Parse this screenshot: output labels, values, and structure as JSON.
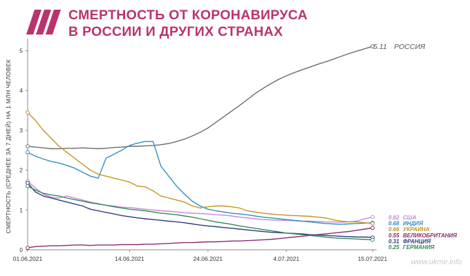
{
  "header": {
    "title_line1": "СМЕРТНОСТЬ ОТ КОРОНАВИРУСА",
    "title_line2": "В РОССИИ И ДРУГИХ СТРАНАХ",
    "brand_color": "#b9336e",
    "logo_icon": "three-slashes-logo"
  },
  "watermark": "www.ukmir.info",
  "chart_data": {
    "type": "line",
    "ylabel": "СМЕРТНОСТЬ (СРЕДНЕЕ ЗА 7 ДНЕЙ) НА 1 МЛН ЧЕЛОВЕК",
    "xlabel": "",
    "x_start": "01.06.2021",
    "x_end": "15.07.2021",
    "x_ticks": [
      {
        "day": 0,
        "label": "01.06.2021"
      },
      {
        "day": 13,
        "label": "14.06.2021"
      },
      {
        "day": 23,
        "label": "24.06.2021"
      },
      {
        "day": 33,
        "label": "4.07.2021"
      },
      {
        "day": 44,
        "label": "15.07.2021"
      }
    ],
    "y_ticks": [
      0,
      1,
      2,
      3,
      4,
      5
    ],
    "ylim": [
      0,
      5.2
    ],
    "series": [
      {
        "name": "РОССИЯ",
        "end_label": "5.11",
        "color": "#6b6b6b",
        "values": [
          2.6,
          2.58,
          2.56,
          2.54,
          2.54,
          2.55,
          2.55,
          2.56,
          2.55,
          2.54,
          2.55,
          2.57,
          2.58,
          2.6,
          2.6,
          2.61,
          2.62,
          2.64,
          2.67,
          2.72,
          2.78,
          2.86,
          2.95,
          3.06,
          3.2,
          3.34,
          3.48,
          3.62,
          3.77,
          3.92,
          4.05,
          4.17,
          4.28,
          4.37,
          4.45,
          4.52,
          4.59,
          4.66,
          4.72,
          4.79,
          4.86,
          4.93,
          4.99,
          5.05,
          5.11
        ]
      },
      {
        "name": "США",
        "end_label": "0.82",
        "color": "#c786d6",
        "values": [
          1.72,
          1.55,
          1.4,
          1.32,
          1.3,
          1.35,
          1.3,
          1.25,
          1.2,
          1.16,
          1.12,
          1.1,
          1.07,
          1.06,
          1.04,
          1.02,
          1.0,
          0.98,
          0.97,
          0.95,
          0.93,
          0.92,
          0.91,
          0.9,
          0.88,
          0.87,
          0.85,
          0.82,
          0.8,
          0.78,
          0.76,
          0.75,
          0.74,
          0.74,
          0.73,
          0.72,
          0.72,
          0.71,
          0.7,
          0.7,
          0.69,
          0.7,
          0.72,
          0.78,
          0.82
        ]
      },
      {
        "name": "ИНДИЯ",
        "end_label": "0.68",
        "color": "#2b8ec5",
        "values": [
          2.45,
          2.35,
          2.28,
          2.22,
          2.18,
          2.12,
          2.05,
          1.95,
          1.85,
          1.8,
          2.3,
          2.4,
          2.5,
          2.62,
          2.68,
          2.72,
          2.72,
          2.1,
          1.85,
          1.6,
          1.4,
          1.22,
          1.1,
          1.02,
          0.98,
          0.95,
          0.92,
          0.9,
          0.88,
          0.85,
          0.82,
          0.8,
          0.78,
          0.76,
          0.74,
          0.72,
          0.7,
          0.68,
          0.66,
          0.65,
          0.64,
          0.65,
          0.66,
          0.67,
          0.68
        ]
      },
      {
        "name": "УКРАИНА",
        "end_label": "0.66",
        "color": "#c2941e",
        "values": [
          3.45,
          3.25,
          3.0,
          2.8,
          2.6,
          2.45,
          2.3,
          2.15,
          2.0,
          1.9,
          1.85,
          1.8,
          1.75,
          1.7,
          1.6,
          1.58,
          1.48,
          1.35,
          1.3,
          1.25,
          1.2,
          1.1,
          1.05,
          1.08,
          1.1,
          1.1,
          1.08,
          1.05,
          0.98,
          0.95,
          0.92,
          0.9,
          0.88,
          0.87,
          0.86,
          0.85,
          0.84,
          0.82,
          0.8,
          0.75,
          0.72,
          0.7,
          0.7,
          0.68,
          0.66
        ]
      },
      {
        "name": "ВЕЛИКОБРИТАНИЯ",
        "end_label": "0.55",
        "color": "#8a2b70",
        "values": [
          0.05,
          0.08,
          0.09,
          0.1,
          0.1,
          0.11,
          0.12,
          0.12,
          0.11,
          0.12,
          0.12,
          0.12,
          0.13,
          0.13,
          0.13,
          0.14,
          0.14,
          0.15,
          0.16,
          0.17,
          0.18,
          0.18,
          0.19,
          0.2,
          0.2,
          0.21,
          0.22,
          0.22,
          0.23,
          0.24,
          0.25,
          0.26,
          0.28,
          0.3,
          0.32,
          0.34,
          0.36,
          0.38,
          0.4,
          0.42,
          0.44,
          0.46,
          0.49,
          0.52,
          0.55
        ]
      },
      {
        "name": "ФРАНЦИЯ",
        "end_label": "0.31",
        "color": "#2f3a7a",
        "values": [
          1.68,
          1.45,
          1.35,
          1.3,
          1.25,
          1.2,
          1.15,
          1.1,
          1.02,
          0.98,
          0.94,
          0.9,
          0.86,
          0.83,
          0.8,
          0.78,
          0.76,
          0.74,
          0.72,
          0.7,
          0.68,
          0.65,
          0.62,
          0.6,
          0.58,
          0.56,
          0.54,
          0.52,
          0.5,
          0.48,
          0.46,
          0.44,
          0.43,
          0.42,
          0.41,
          0.4,
          0.38,
          0.37,
          0.36,
          0.35,
          0.34,
          0.33,
          0.32,
          0.32,
          0.31
        ]
      },
      {
        "name": "ГЕРМАНИЯ",
        "end_label": "0.25",
        "color": "#2e8b57",
        "values": [
          1.6,
          1.5,
          1.42,
          1.38,
          1.35,
          1.3,
          1.26,
          1.22,
          1.18,
          1.15,
          1.12,
          1.08,
          1.05,
          1.02,
          1.0,
          0.98,
          0.95,
          0.92,
          0.9,
          0.88,
          0.85,
          0.82,
          0.78,
          0.74,
          0.7,
          0.67,
          0.64,
          0.6,
          0.57,
          0.54,
          0.51,
          0.48,
          0.45,
          0.42,
          0.4,
          0.38,
          0.36,
          0.34,
          0.32,
          0.3,
          0.29,
          0.28,
          0.27,
          0.26,
          0.25
        ]
      }
    ]
  }
}
